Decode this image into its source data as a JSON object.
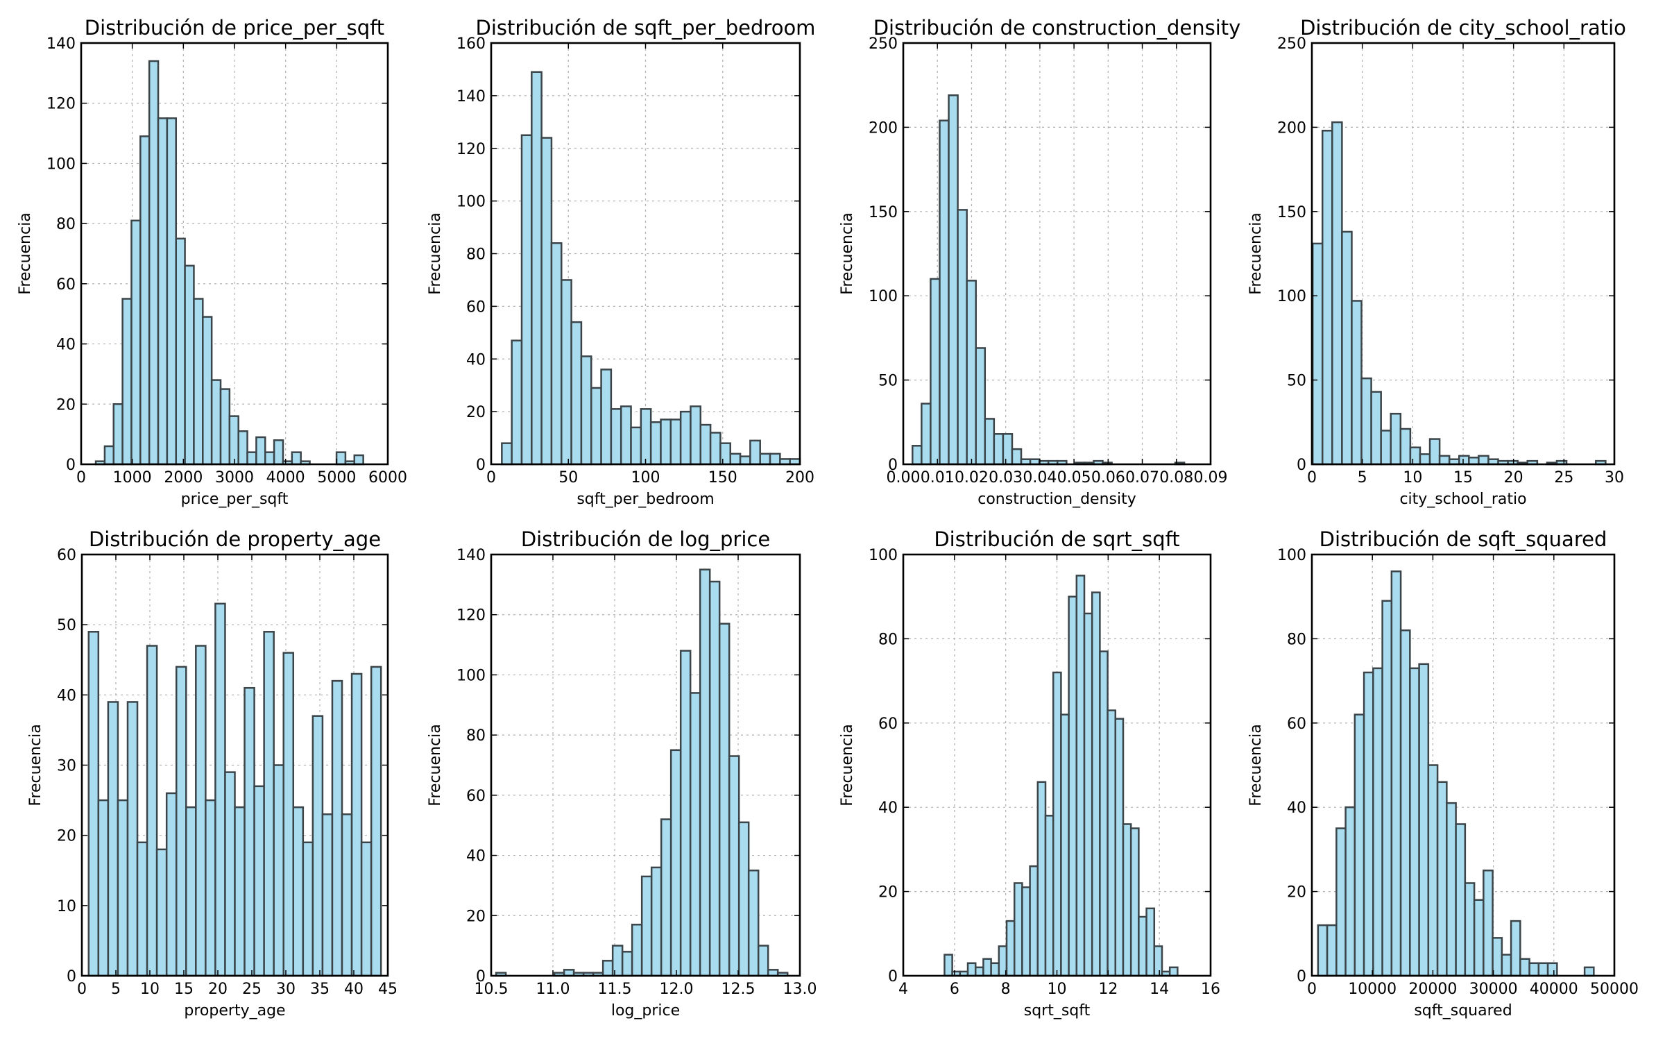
{
  "figure": {
    "background": "#ffffff",
    "bar_fill": "#a9dcef",
    "bar_edge": "#3b4549"
  },
  "chart_data": [
    {
      "type": "bar",
      "title": "Distribución de price_per_sqft",
      "xlabel": "price_per_sqft",
      "ylabel": "Frecuencia",
      "xlim": [
        0,
        6000
      ],
      "ylim": [
        0,
        140
      ],
      "xticks": [
        0,
        1000,
        2000,
        3000,
        4000,
        5000,
        6000
      ],
      "xtick_labels": [
        "0",
        "1000",
        "2000",
        "3000",
        "4000",
        "5000",
        "6000"
      ],
      "yticks": [
        0,
        20,
        40,
        60,
        80,
        100,
        120,
        140
      ],
      "ytick_labels": [
        "0",
        "20",
        "40",
        "60",
        "80",
        "100",
        "120",
        "140"
      ],
      "grid": true,
      "bin_start": 286,
      "bin_end": 5520,
      "values": [
        1,
        6,
        20,
        55,
        81,
        109,
        134,
        115,
        115,
        75,
        66,
        55,
        49,
        28,
        25,
        16,
        11,
        4,
        9,
        4,
        8,
        1,
        4,
        1,
        0,
        0,
        0,
        4,
        1,
        3
      ]
    },
    {
      "type": "bar",
      "title": "Distribución de sqft_per_bedroom",
      "xlabel": "sqft_per_bedroom",
      "ylabel": "Frecuencia",
      "xlim": [
        0,
        200
      ],
      "ylim": [
        0,
        160
      ],
      "xticks": [
        0,
        50,
        100,
        150,
        200
      ],
      "xtick_labels": [
        "0",
        "50",
        "100",
        "150",
        "200"
      ],
      "yticks": [
        0,
        20,
        40,
        60,
        80,
        100,
        120,
        140,
        160
      ],
      "ytick_labels": [
        "0",
        "20",
        "40",
        "60",
        "80",
        "100",
        "120",
        "140",
        "160"
      ],
      "grid": true,
      "bin_start": 6.9,
      "bin_end": 200,
      "values": [
        8,
        47,
        125,
        149,
        124,
        84,
        70,
        54,
        41,
        29,
        36,
        21,
        22,
        14,
        21,
        16,
        17,
        17,
        20,
        22,
        15,
        12,
        8,
        4,
        3,
        9,
        4,
        4,
        2,
        2
      ]
    },
    {
      "type": "bar",
      "title": "Distribución de construction_density",
      "xlabel": "construction_density",
      "ylabel": "Frecuencia",
      "xlim": [
        0,
        0.09
      ],
      "ylim": [
        0,
        250
      ],
      "xticks": [
        0,
        0.01,
        0.02,
        0.03,
        0.04,
        0.05,
        0.06,
        0.07,
        0.08,
        0.09
      ],
      "xtick_labels": [
        "0.00",
        "0.01",
        "0.02",
        "0.03",
        "0.04",
        "0.05",
        "0.06",
        "0.07",
        "0.08",
        "0.09"
      ],
      "yticks": [
        0,
        50,
        100,
        150,
        200,
        250
      ],
      "ytick_labels": [
        "0",
        "50",
        "100",
        "150",
        "200",
        "250"
      ],
      "grid": true,
      "bin_start": 0.0027,
      "bin_end": 0.0823,
      "values": [
        11,
        36,
        110,
        204,
        219,
        151,
        109,
        69,
        27,
        18,
        18,
        9,
        3,
        3,
        2,
        2,
        2,
        0,
        1,
        1,
        2,
        1,
        0,
        0,
        0,
        0,
        0,
        0,
        0,
        1
      ]
    },
    {
      "type": "bar",
      "title": "Distribución de city_school_ratio",
      "xlabel": "city_school_ratio",
      "ylabel": "Frecuencia",
      "xlim": [
        0,
        30
      ],
      "ylim": [
        0,
        250
      ],
      "xticks": [
        0,
        5,
        10,
        15,
        20,
        25,
        30
      ],
      "xtick_labels": [
        "0",
        "5",
        "10",
        "15",
        "20",
        "25",
        "30"
      ],
      "yticks": [
        0,
        50,
        100,
        150,
        200,
        250
      ],
      "ytick_labels": [
        "0",
        "50",
        "100",
        "150",
        "200",
        "250"
      ],
      "grid": true,
      "bin_start": 0.08,
      "bin_end": 29.13,
      "values": [
        131,
        198,
        203,
        138,
        97,
        51,
        43,
        20,
        30,
        21,
        10,
        6,
        15,
        5,
        3,
        5,
        4,
        5,
        3,
        2,
        2,
        1,
        2,
        0,
        1,
        2,
        0,
        0,
        0,
        2
      ]
    },
    {
      "type": "bar",
      "title": "Distribución de property_age",
      "xlabel": "property_age",
      "ylabel": "Frecuencia",
      "xlim": [
        0,
        45
      ],
      "ylim": [
        0,
        60
      ],
      "xticks": [
        0,
        5,
        10,
        15,
        20,
        25,
        30,
        35,
        40,
        45
      ],
      "xtick_labels": [
        "0",
        "5",
        "10",
        "15",
        "20",
        "25",
        "30",
        "35",
        "40",
        "45"
      ],
      "yticks": [
        0,
        10,
        20,
        30,
        40,
        50,
        60
      ],
      "ytick_labels": [
        "0",
        "10",
        "20",
        "30",
        "40",
        "50",
        "60"
      ],
      "grid": true,
      "bin_start": 1,
      "bin_end": 44,
      "values": [
        49,
        25,
        39,
        25,
        39,
        19,
        47,
        18,
        26,
        44,
        24,
        47,
        25,
        53,
        29,
        24,
        41,
        27,
        49,
        30,
        46,
        24,
        19,
        37,
        23,
        42,
        23,
        43,
        19,
        44
      ]
    },
    {
      "type": "bar",
      "title": "Distribución de log_price",
      "xlabel": "log_price",
      "ylabel": "Frecuencia",
      "xlim": [
        10.5,
        13.0
      ],
      "ylim": [
        0,
        140
      ],
      "xticks": [
        10.5,
        11.0,
        11.5,
        12.0,
        12.5,
        13.0
      ],
      "xtick_labels": [
        "10.5",
        "11.0",
        "11.5",
        "12.0",
        "12.5",
        "13.0"
      ],
      "yticks": [
        0,
        20,
        40,
        60,
        80,
        100,
        120,
        140
      ],
      "ytick_labels": [
        "0",
        "20",
        "40",
        "60",
        "80",
        "100",
        "120",
        "140"
      ],
      "grid": true,
      "bin_start": 10.54,
      "bin_end": 12.9,
      "values": [
        1,
        0,
        0,
        0,
        0,
        0,
        1,
        2,
        1,
        1,
        1,
        5,
        10,
        8,
        17,
        33,
        36,
        52,
        75,
        108,
        94,
        135,
        131,
        117,
        73,
        51,
        35,
        10,
        2,
        1
      ]
    },
    {
      "type": "bar",
      "title": "Distribución de sqrt_sqft",
      "xlabel": "sqrt_sqft",
      "ylabel": "Frecuencia",
      "xlim": [
        4,
        16
      ],
      "ylim": [
        0,
        100
      ],
      "xticks": [
        4,
        6,
        8,
        10,
        12,
        14,
        16
      ],
      "xtick_labels": [
        "4",
        "6",
        "8",
        "10",
        "12",
        "14",
        "16"
      ],
      "yticks": [
        0,
        20,
        40,
        60,
        80,
        100
      ],
      "ytick_labels": [
        "0",
        "20",
        "40",
        "60",
        "80",
        "100"
      ],
      "grid": true,
      "bin_start": 5.61,
      "bin_end": 14.71,
      "values": [
        5,
        1,
        1,
        3,
        2,
        4,
        3,
        7,
        13,
        22,
        21,
        26,
        46,
        38,
        72,
        62,
        90,
        95,
        86,
        91,
        77,
        63,
        61,
        36,
        35,
        14,
        16,
        7,
        1,
        2
      ]
    },
    {
      "type": "bar",
      "title": "Distribución de sqft_squared",
      "xlabel": "sqft_squared",
      "ylabel": "Frecuencia",
      "xlim": [
        0,
        50000
      ],
      "ylim": [
        0,
        100
      ],
      "xticks": [
        0,
        10000,
        20000,
        30000,
        40000,
        50000
      ],
      "xtick_labels": [
        "0",
        "10000",
        "20000",
        "30000",
        "40000",
        "50000"
      ],
      "yticks": [
        0,
        20,
        40,
        60,
        80,
        100
      ],
      "ytick_labels": [
        "0",
        "20",
        "40",
        "60",
        "80",
        "100"
      ],
      "grid": true,
      "bin_start": 1015,
      "bin_end": 46600,
      "values": [
        12,
        12,
        35,
        40,
        62,
        72,
        73,
        89,
        96,
        82,
        73,
        74,
        50,
        46,
        41,
        36,
        22,
        18,
        25,
        9,
        5,
        13,
        4,
        3,
        3,
        3,
        0,
        0,
        0,
        2
      ]
    }
  ]
}
